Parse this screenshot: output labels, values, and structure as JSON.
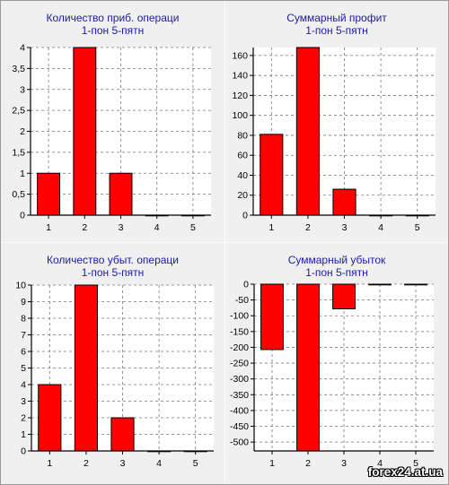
{
  "chart_data": [
    {
      "type": "bar",
      "title": "Количество приб. операци",
      "subtitle": "1-пон 5-пятн",
      "categories": [
        "1",
        "2",
        "3",
        "4",
        "5"
      ],
      "values": [
        1,
        4,
        1,
        0,
        0
      ],
      "ylim": [
        0,
        4
      ],
      "yticks": [
        "0",
        "0,5",
        "1",
        "1,5",
        "2",
        "2,5",
        "3",
        "3,5",
        "4"
      ],
      "grid": true,
      "bar_color": "#ff0000"
    },
    {
      "type": "bar",
      "title": "Суммарный профит",
      "subtitle": "1-пон 5-пятн",
      "categories": [
        "1",
        "2",
        "3",
        "4",
        "5"
      ],
      "values": [
        81,
        168,
        26,
        0,
        0
      ],
      "ylim": [
        0,
        168
      ],
      "yticks": [
        "0",
        "20",
        "40",
        "60",
        "80",
        "100",
        "120",
        "140",
        "160"
      ],
      "grid": true,
      "bar_color": "#ff0000"
    },
    {
      "type": "bar",
      "title": "Количество убыт. операци",
      "subtitle": "1-пон 5-пятн",
      "categories": [
        "1",
        "2",
        "3",
        "4",
        "5"
      ],
      "values": [
        4,
        10,
        2,
        0,
        0
      ],
      "ylim": [
        0,
        10
      ],
      "yticks": [
        "0",
        "1",
        "2",
        "3",
        "4",
        "5",
        "6",
        "7",
        "8",
        "9",
        "10"
      ],
      "grid": true,
      "bar_color": "#ff0000"
    },
    {
      "type": "bar",
      "title": "Суммарный убыток",
      "subtitle": "1-пон 5-пятн",
      "categories": [
        "1",
        "2",
        "3",
        "4",
        "5"
      ],
      "values": [
        -207,
        -528,
        -78,
        -1,
        -1
      ],
      "ylim": [
        -528,
        0
      ],
      "yticks": [
        "-500",
        "-450",
        "-400",
        "-350",
        "-300",
        "-250",
        "-200",
        "-150",
        "-100",
        "-50",
        "0"
      ],
      "grid": true,
      "bar_color": "#ff0000"
    }
  ],
  "watermark": "forex24.at.ua"
}
